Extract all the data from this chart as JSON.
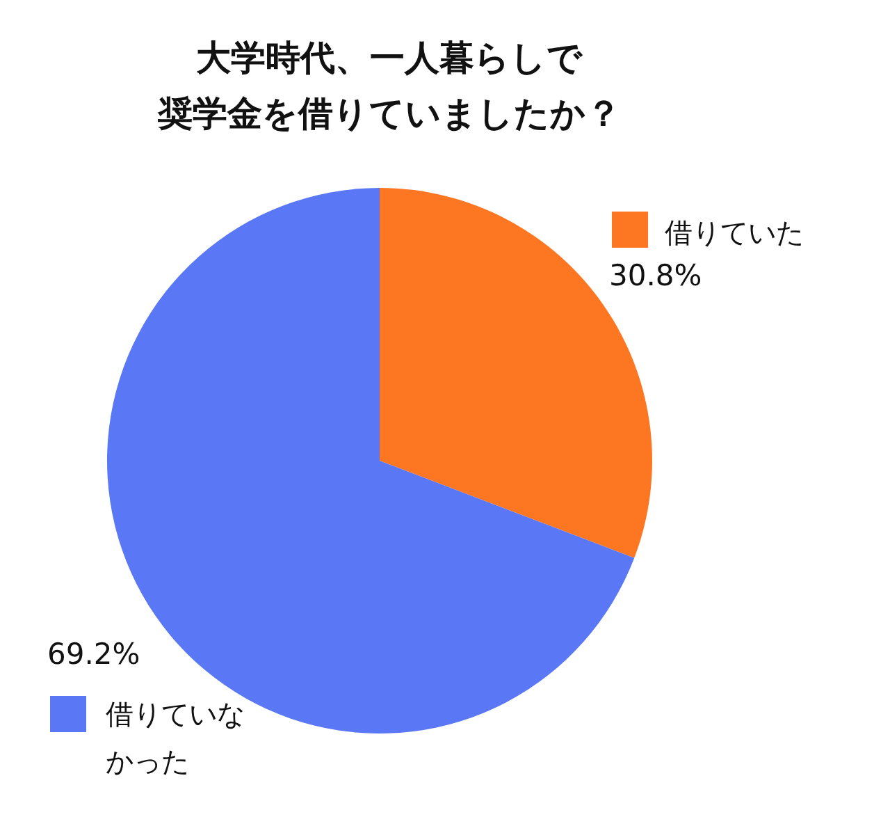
{
  "chart_data": {
    "type": "pie",
    "title": "大学時代、一人暮らしで奨学金を借りていましたか？",
    "legend": "right",
    "categories": [
      "借りていた",
      "借りていなかった"
    ],
    "values": [
      30.8,
      69.2
    ],
    "value_labels": [
      "30.8%",
      "69.2%"
    ],
    "colors": [
      "#fd7722",
      "#5a78f5"
    ]
  }
}
